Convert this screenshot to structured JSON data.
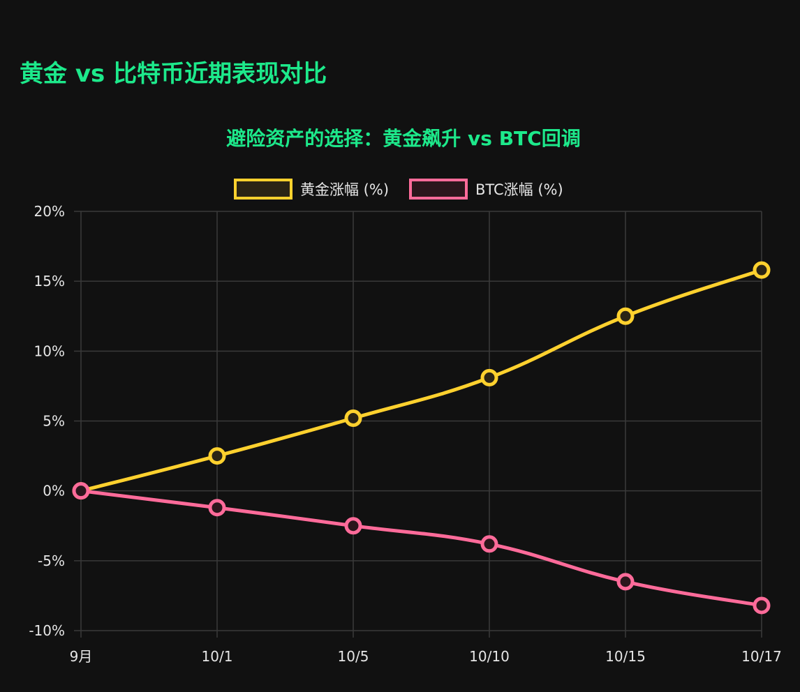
{
  "page": {
    "title": "黄金 vs 比特币近期表现对比"
  },
  "chart_data": {
    "type": "line",
    "title": "避险资产的选择：黄金飙升 vs BTC回调",
    "categories": [
      "9月",
      "10/1",
      "10/5",
      "10/10",
      "10/15",
      "10/17"
    ],
    "ylim": [
      -10,
      20
    ],
    "yticks": [
      20,
      15,
      10,
      5,
      0,
      -5,
      -10
    ],
    "ytick_suffix": "%",
    "grid": true,
    "legend_position": "top",
    "series": [
      {
        "name": "黄金涨幅 (%)",
        "values": [
          0,
          2.5,
          5.2,
          8.1,
          12.5,
          15.8
        ],
        "color": "#ffd12e",
        "fill": "#2a2415"
      },
      {
        "name": "BTC涨幅 (%)",
        "values": [
          0,
          -1.2,
          -2.5,
          -3.8,
          -6.5,
          -8.2
        ],
        "color": "#ff6b9a",
        "fill": "#2b161c"
      }
    ]
  }
}
